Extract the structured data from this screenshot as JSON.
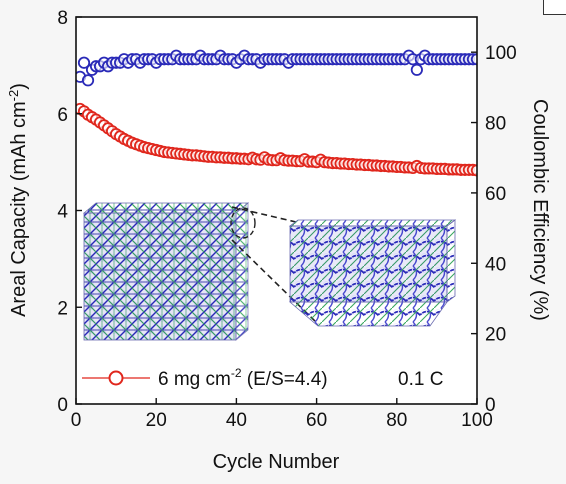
{
  "chart_data": {
    "type": "scatter",
    "xlabel": "Cycle Number",
    "ylabel_left": "Areal Capacity (mAh cm",
    "ylabel_left_sup": "-2",
    "ylabel_left_tail": ")",
    "ylabel_right": "Coulombic Efficiency (%)",
    "xlim": [
      0,
      100
    ],
    "ylim_left": [
      0,
      8
    ],
    "ylim_right": [
      0,
      110
    ],
    "x_ticks": [
      "0",
      "20",
      "40",
      "60",
      "80",
      "100"
    ],
    "y_left_ticks": [
      "0",
      "2",
      "4",
      "6",
      "8"
    ],
    "y_right_ticks": [
      "0",
      "20",
      "40",
      "60",
      "80",
      "100"
    ],
    "legend": {
      "text_main": "6 mg cm",
      "text_sup": "-2",
      "text_tail": " (E/S=4.4)",
      "rate": "0.1 C"
    },
    "colors": {
      "capacity": "#e0261c",
      "efficiency": "#2a2ab8",
      "inset_blue": "#3a3aa8",
      "inset_green": "#3aa860"
    },
    "series": [
      {
        "axis": "left",
        "x": [
          1,
          2,
          3,
          4,
          5,
          6,
          7,
          8,
          9,
          10,
          11,
          12,
          13,
          14,
          15,
          16,
          17,
          18,
          19,
          20,
          21,
          22,
          23,
          24,
          25,
          26,
          27,
          28,
          29,
          30,
          31,
          32,
          33,
          34,
          35,
          36,
          37,
          38,
          39,
          40,
          41,
          42,
          43,
          44,
          45,
          46,
          47,
          48,
          49,
          50,
          51,
          52,
          53,
          54,
          55,
          56,
          57,
          58,
          59,
          60,
          61,
          62,
          63,
          64,
          65,
          66,
          67,
          68,
          69,
          70,
          71,
          72,
          73,
          74,
          75,
          76,
          77,
          78,
          79,
          80,
          81,
          82,
          83,
          84,
          85,
          86,
          87,
          88,
          89,
          90,
          91,
          92,
          93,
          94,
          95,
          96,
          97,
          98,
          99,
          100
        ],
        "values": [
          6.1,
          6.05,
          5.98,
          5.93,
          5.88,
          5.82,
          5.76,
          5.7,
          5.64,
          5.58,
          5.53,
          5.48,
          5.44,
          5.4,
          5.37,
          5.34,
          5.31,
          5.29,
          5.27,
          5.25,
          5.23,
          5.21,
          5.2,
          5.19,
          5.18,
          5.17,
          5.16,
          5.15,
          5.14,
          5.14,
          5.13,
          5.12,
          5.11,
          5.11,
          5.1,
          5.1,
          5.09,
          5.09,
          5.08,
          5.08,
          5.07,
          5.07,
          5.06,
          5.09,
          5.06,
          5.05,
          5.1,
          5.05,
          5.04,
          5.04,
          5.08,
          5.04,
          5.03,
          5.03,
          5.02,
          5.02,
          5.06,
          5.01,
          5.01,
          5.0,
          5.05,
          5.0,
          4.99,
          4.98,
          4.98,
          4.97,
          4.97,
          4.96,
          4.96,
          4.95,
          4.95,
          4.94,
          4.94,
          4.93,
          4.93,
          4.92,
          4.92,
          4.91,
          4.91,
          4.9,
          4.9,
          4.89,
          4.89,
          4.88,
          4.92,
          4.88,
          4.87,
          4.87,
          4.87,
          4.86,
          4.86,
          4.86,
          4.85,
          4.85,
          4.85,
          4.84,
          4.84,
          4.84,
          4.84,
          4.83
        ]
      },
      {
        "axis": "right",
        "x": [
          1,
          2,
          3,
          4,
          5,
          6,
          7,
          8,
          9,
          10,
          11,
          12,
          13,
          14,
          15,
          16,
          17,
          18,
          19,
          20,
          21,
          22,
          23,
          24,
          25,
          26,
          27,
          28,
          29,
          30,
          31,
          32,
          33,
          34,
          35,
          36,
          37,
          38,
          39,
          40,
          41,
          42,
          43,
          44,
          45,
          46,
          47,
          48,
          49,
          50,
          51,
          52,
          53,
          54,
          55,
          56,
          57,
          58,
          59,
          60,
          61,
          62,
          63,
          64,
          65,
          66,
          67,
          68,
          69,
          70,
          71,
          72,
          73,
          74,
          75,
          76,
          77,
          78,
          79,
          80,
          81,
          82,
          83,
          84,
          85,
          86,
          87,
          88,
          89,
          90,
          91,
          92,
          93,
          94,
          95,
          96,
          97,
          98,
          99,
          100
        ],
        "values": [
          93,
          97,
          92,
          95,
          96,
          96,
          97,
          96,
          97,
          97,
          97,
          98,
          97,
          98,
          98,
          97,
          98,
          98,
          98,
          97,
          98,
          98,
          98,
          98,
          99,
          98,
          98,
          98,
          98,
          98,
          99,
          98,
          98,
          98,
          98,
          99,
          98,
          98,
          98,
          97,
          98,
          99,
          98,
          98,
          98,
          97,
          98,
          98,
          98,
          98,
          98,
          98,
          97,
          98,
          98,
          98,
          98,
          98,
          98,
          98,
          98,
          98,
          98,
          98,
          98,
          98,
          98,
          98,
          98,
          98,
          98,
          98,
          98,
          98,
          98,
          98,
          98,
          98,
          98,
          98,
          98,
          98,
          99,
          98,
          95,
          98,
          99,
          98,
          98,
          98,
          98,
          98,
          98,
          98,
          98,
          98,
          98,
          98,
          98,
          98
        ]
      }
    ]
  }
}
